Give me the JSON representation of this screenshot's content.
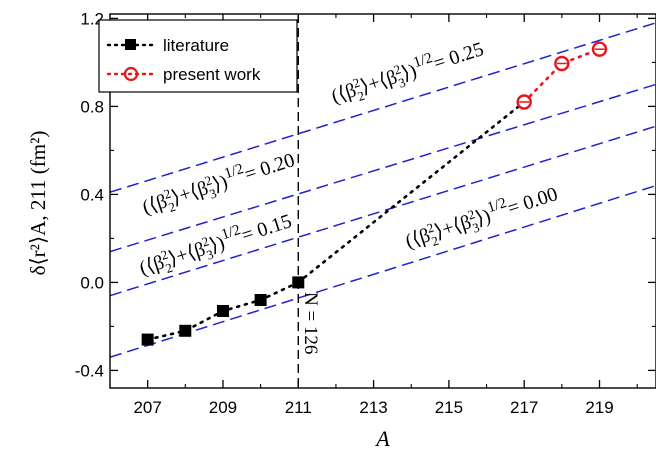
{
  "chart_data": {
    "type": "scatter",
    "xlabel": "A",
    "ylabel": "δ⟨r²⟩A, 211 (fm²)",
    "xlim": [
      206,
      220.5
    ],
    "ylim": [
      -0.48,
      1.22
    ],
    "x_ticks": [
      207,
      209,
      211,
      213,
      215,
      217,
      219
    ],
    "x_tick_labels": [
      "207",
      "209",
      "211",
      "213",
      "215",
      "217",
      "219"
    ],
    "y_ticks": [
      -0.4,
      0.0,
      0.4,
      0.8,
      1.2
    ],
    "y_tick_labels": [
      "-0.4",
      "0.0",
      "0.4",
      "0.8",
      "1.2"
    ],
    "grid": false,
    "legend_position": "top-left",
    "series": [
      {
        "name": "literature",
        "marker": "filled-square",
        "line": "dotted",
        "color": "#000000",
        "x": [
          207,
          208,
          209,
          210,
          211
        ],
        "y": [
          -0.26,
          -0.22,
          -0.13,
          -0.08,
          0.0
        ]
      },
      {
        "name": "present work",
        "marker": "open-circle",
        "line": "dotted",
        "color": "#e8161b",
        "x": [
          217,
          218,
          219
        ],
        "y": [
          0.82,
          0.995,
          1.06
        ],
        "y_err": [
          0.012,
          0.012,
          0.012
        ]
      }
    ],
    "literature_to_present_connector": {
      "x": [
        211,
        217
      ],
      "y": [
        0.0,
        0.82
      ]
    },
    "iso_deformation_lines": [
      {
        "value": "0.25",
        "x": [
          206,
          220.5
        ],
        "y": [
          0.41,
          1.18
        ],
        "label": "0.25"
      },
      {
        "value": "0.20",
        "x": [
          206,
          220.5
        ],
        "y": [
          0.14,
          0.9
        ],
        "label": "0.20"
      },
      {
        "value": "0.15",
        "x": [
          206,
          220.5
        ],
        "y": [
          -0.06,
          0.71
        ],
        "label": "0.15"
      },
      {
        "value": "0.00",
        "x": [
          206,
          220.5
        ],
        "y": [
          -0.34,
          0.44
        ],
        "label": "0.00"
      }
    ],
    "iso_line_color": "#2222cc",
    "vertical_marker": {
      "x": 211,
      "label": "N = 126"
    }
  }
}
